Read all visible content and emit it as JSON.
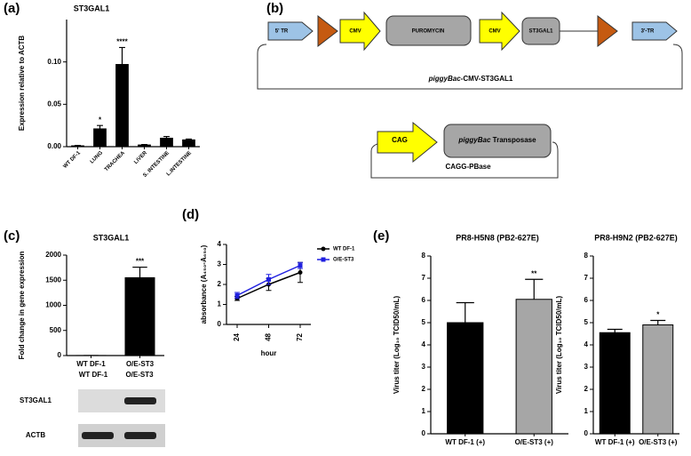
{
  "panels": [
    "(a)",
    "(b)",
    "(c)",
    "(d)",
    "(e)"
  ],
  "chart_data": [
    {
      "type": "bar",
      "title": "ST3GAL1",
      "y_label": "Expression relative to ACTB",
      "categories": [
        "WT DF-1",
        "LUNG",
        "TRACHEA",
        "LIVER",
        "S. INTESTINE",
        "L.INTESTINE"
      ],
      "values": [
        0.001,
        0.021,
        0.097,
        0.002,
        0.01,
        0.008
      ],
      "errors": [
        0.0005,
        0.004,
        0.02,
        0.0005,
        0.002,
        0.001
      ],
      "significance": [
        null,
        "*",
        "****",
        null,
        null,
        null
      ],
      "colors": [
        "#000000",
        "#000000",
        "#000000",
        "#000000",
        "#000000",
        "#000000"
      ],
      "ylim": [
        0,
        0.15
      ],
      "yticks": [
        {
          "value": 0,
          "label": "0.00"
        },
        {
          "value": 0.05,
          "label": "0.05"
        },
        {
          "value": 0.1,
          "label": "0.10"
        }
      ]
    },
    {
      "type": "bar",
      "title": "ST3GAL1",
      "y_label": "Fold change in gene expression",
      "categories": [
        "WT DF-1",
        "O/E-ST3"
      ],
      "values": [
        1,
        1550
      ],
      "errors": [
        0,
        210
      ],
      "significance": [
        null,
        "***"
      ],
      "colors": [
        "#000000",
        "#000000"
      ],
      "ylim": [
        0,
        2000
      ],
      "yticks": [
        0,
        500,
        1000,
        1500,
        2000
      ]
    },
    {
      "type": "line",
      "y_label": "absorbance (A₄₅₀-A₆₅₀)",
      "x_label": "hour",
      "categories": [
        "24",
        "48",
        "72"
      ],
      "series": [
        {
          "name": "WT DF-1",
          "color": "#000000",
          "marker": "circle",
          "values": [
            1.3,
            2.0,
            2.6
          ],
          "errors": [
            0.1,
            0.3,
            0.5
          ]
        },
        {
          "name": "O/E-ST3",
          "color": "#1f1fe0",
          "marker": "square",
          "values": [
            1.45,
            2.25,
            2.95
          ],
          "errors": [
            0.15,
            0.25,
            0.15
          ]
        }
      ],
      "ylim": [
        0,
        4
      ],
      "yticks": [
        0,
        1,
        2,
        3,
        4
      ]
    },
    {
      "type": "bar",
      "title": "PR8-H5N8 (PB2-627E)",
      "y_label": "Virus titer (Log₁₀ TCID50/mL)",
      "categories": [
        "WT DF-1 (+)",
        "O/E-ST3 (+)"
      ],
      "values": [
        5.0,
        6.05
      ],
      "errors": [
        0.9,
        0.9
      ],
      "significance": [
        null,
        "**"
      ],
      "colors": [
        "#000000",
        "#a6a6a6"
      ],
      "ylim": [
        0,
        8
      ],
      "yticks": [
        0,
        1,
        2,
        3,
        4,
        5,
        6,
        7,
        8
      ]
    },
    {
      "type": "bar",
      "title": "PR8-H9N2 (PB2-627E)",
      "y_label": "Virus titer (Log₁₀ TCID50/mL)",
      "categories": [
        "WT DF-1 (+)",
        "O/E-ST3 (+)"
      ],
      "values": [
        4.55,
        4.9
      ],
      "errors": [
        0.15,
        0.2
      ],
      "significance": [
        null,
        "*"
      ],
      "colors": [
        "#000000",
        "#a6a6a6"
      ],
      "ylim": [
        0,
        8
      ],
      "yticks": [
        0,
        1,
        2,
        3,
        4,
        5,
        6,
        7,
        8
      ]
    }
  ],
  "diagram": {
    "vector": {
      "elements": [
        "5' TR",
        "CMV",
        "PUROMYCIN",
        "CMV",
        "ST3GAL1",
        "3'-TR"
      ],
      "caption_italic": "piggyBac",
      "caption_rest": "-CMV-ST3GAL1"
    },
    "helper": {
      "promoter": "CAG",
      "gene_italic": "piggyBac",
      "gene_rest": " Transposase",
      "caption": "CAGG-PBase"
    }
  },
  "gel": {
    "columns": [
      "WT DF-1",
      "O/E-ST3"
    ],
    "rows": [
      "ST3GAL1",
      "ACTB"
    ]
  }
}
